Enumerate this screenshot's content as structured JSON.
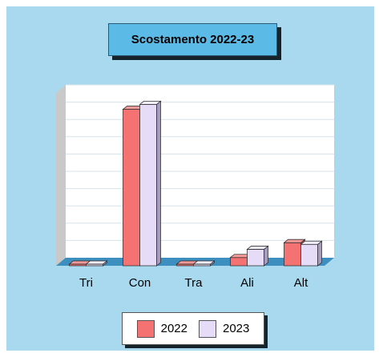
{
  "chart_data": {
    "type": "bar",
    "title": "Scostamento 2022-23",
    "categories": [
      "Tri",
      "Con",
      "Tra",
      "Ali",
      "Alt"
    ],
    "series": [
      {
        "name": "2022",
        "values": [
          1,
          95,
          1,
          5,
          14
        ]
      },
      {
        "name": "2023",
        "values": [
          1,
          98,
          1,
          10,
          13
        ]
      }
    ],
    "ylim": [
      0,
      105
    ],
    "grid": true,
    "legend_position": "bottom",
    "colors": {
      "2022": "#f47272",
      "2023": "#e6dcf7",
      "background": "#a9d9ee",
      "title_box": "#5bbbe6"
    }
  }
}
